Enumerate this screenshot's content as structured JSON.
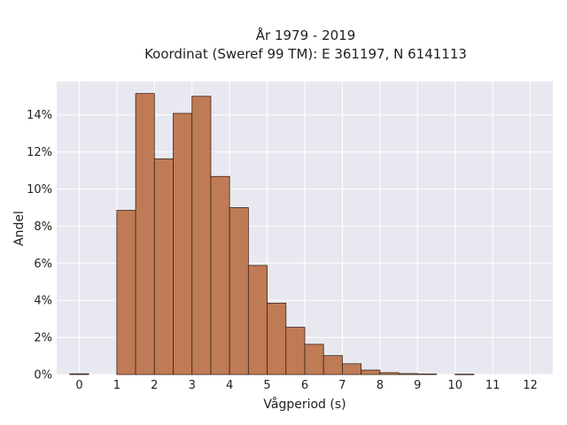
{
  "chart_data": {
    "type": "bar",
    "title": [
      "År 1979 - 2019",
      "Koordinat (Sweref 99 TM): E 361197, N 6141113"
    ],
    "xlabel": "Vågperiod (s)",
    "ylabel": "Andel",
    "xlim": [
      -0.6,
      12.6
    ],
    "ylim": [
      0,
      0.158
    ],
    "x_ticks": [
      0,
      1,
      2,
      3,
      4,
      5,
      6,
      7,
      8,
      9,
      10,
      11,
      12
    ],
    "x_tick_labels": [
      "0",
      "1",
      "2",
      "3",
      "4",
      "5",
      "6",
      "7",
      "8",
      "9",
      "10",
      "11",
      "12"
    ],
    "y_ticks": [
      0,
      0.02,
      0.04,
      0.06,
      0.08,
      0.1,
      0.12,
      0.14
    ],
    "y_tick_labels": [
      "0%",
      "2%",
      "4%",
      "6%",
      "8%",
      "10%",
      "12%",
      "14%"
    ],
    "bin_width": 0.5,
    "bins": [
      {
        "x0": -0.25,
        "x1": 0.25,
        "value": 0.0004
      },
      {
        "x0": 1.0,
        "x1": 1.5,
        "value": 0.0885
      },
      {
        "x0": 1.5,
        "x1": 2.0,
        "value": 0.1515
      },
      {
        "x0": 2.0,
        "x1": 2.5,
        "value": 0.1163
      },
      {
        "x0": 2.5,
        "x1": 3.0,
        "value": 0.1408
      },
      {
        "x0": 3.0,
        "x1": 3.5,
        "value": 0.15
      },
      {
        "x0": 3.5,
        "x1": 4.0,
        "value": 0.1068
      },
      {
        "x0": 4.0,
        "x1": 4.5,
        "value": 0.09
      },
      {
        "x0": 4.5,
        "x1": 5.0,
        "value": 0.0588
      },
      {
        "x0": 5.0,
        "x1": 5.5,
        "value": 0.0385
      },
      {
        "x0": 5.5,
        "x1": 6.0,
        "value": 0.0255
      },
      {
        "x0": 6.0,
        "x1": 6.5,
        "value": 0.0163
      },
      {
        "x0": 6.5,
        "x1": 7.0,
        "value": 0.0102
      },
      {
        "x0": 7.0,
        "x1": 7.5,
        "value": 0.0058
      },
      {
        "x0": 7.5,
        "x1": 8.0,
        "value": 0.0024
      },
      {
        "x0": 8.0,
        "x1": 8.5,
        "value": 0.001
      },
      {
        "x0": 8.5,
        "x1": 9.0,
        "value": 0.0005
      },
      {
        "x0": 9.0,
        "x1": 9.5,
        "value": 0.0003
      },
      {
        "x0": 10.0,
        "x1": 10.5,
        "value": 0.0002
      }
    ],
    "grid": true,
    "colors": {
      "bar_fill": "#BF7B55",
      "bar_edge": "#3B2418",
      "plot_bg": "#E8E9F0",
      "grid": "#FFFFFF"
    }
  }
}
